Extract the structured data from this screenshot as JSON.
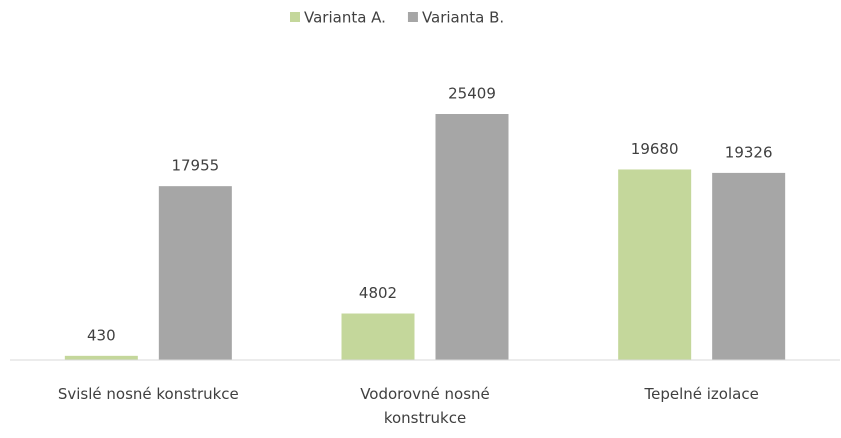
{
  "chart_data": {
    "type": "bar",
    "categories": [
      "Svislé nosné konstrukce",
      "Vodorovné nosné konstrukce",
      "Tepelné izolace"
    ],
    "series": [
      {
        "name": "Varianta A.",
        "color": "#c4d79b",
        "values": [
          430,
          4802,
          19680
        ]
      },
      {
        "name": "Varianta B.",
        "color": "#a6a6a6",
        "values": [
          17955,
          25409,
          19326
        ]
      }
    ],
    "legend": "top"
  }
}
